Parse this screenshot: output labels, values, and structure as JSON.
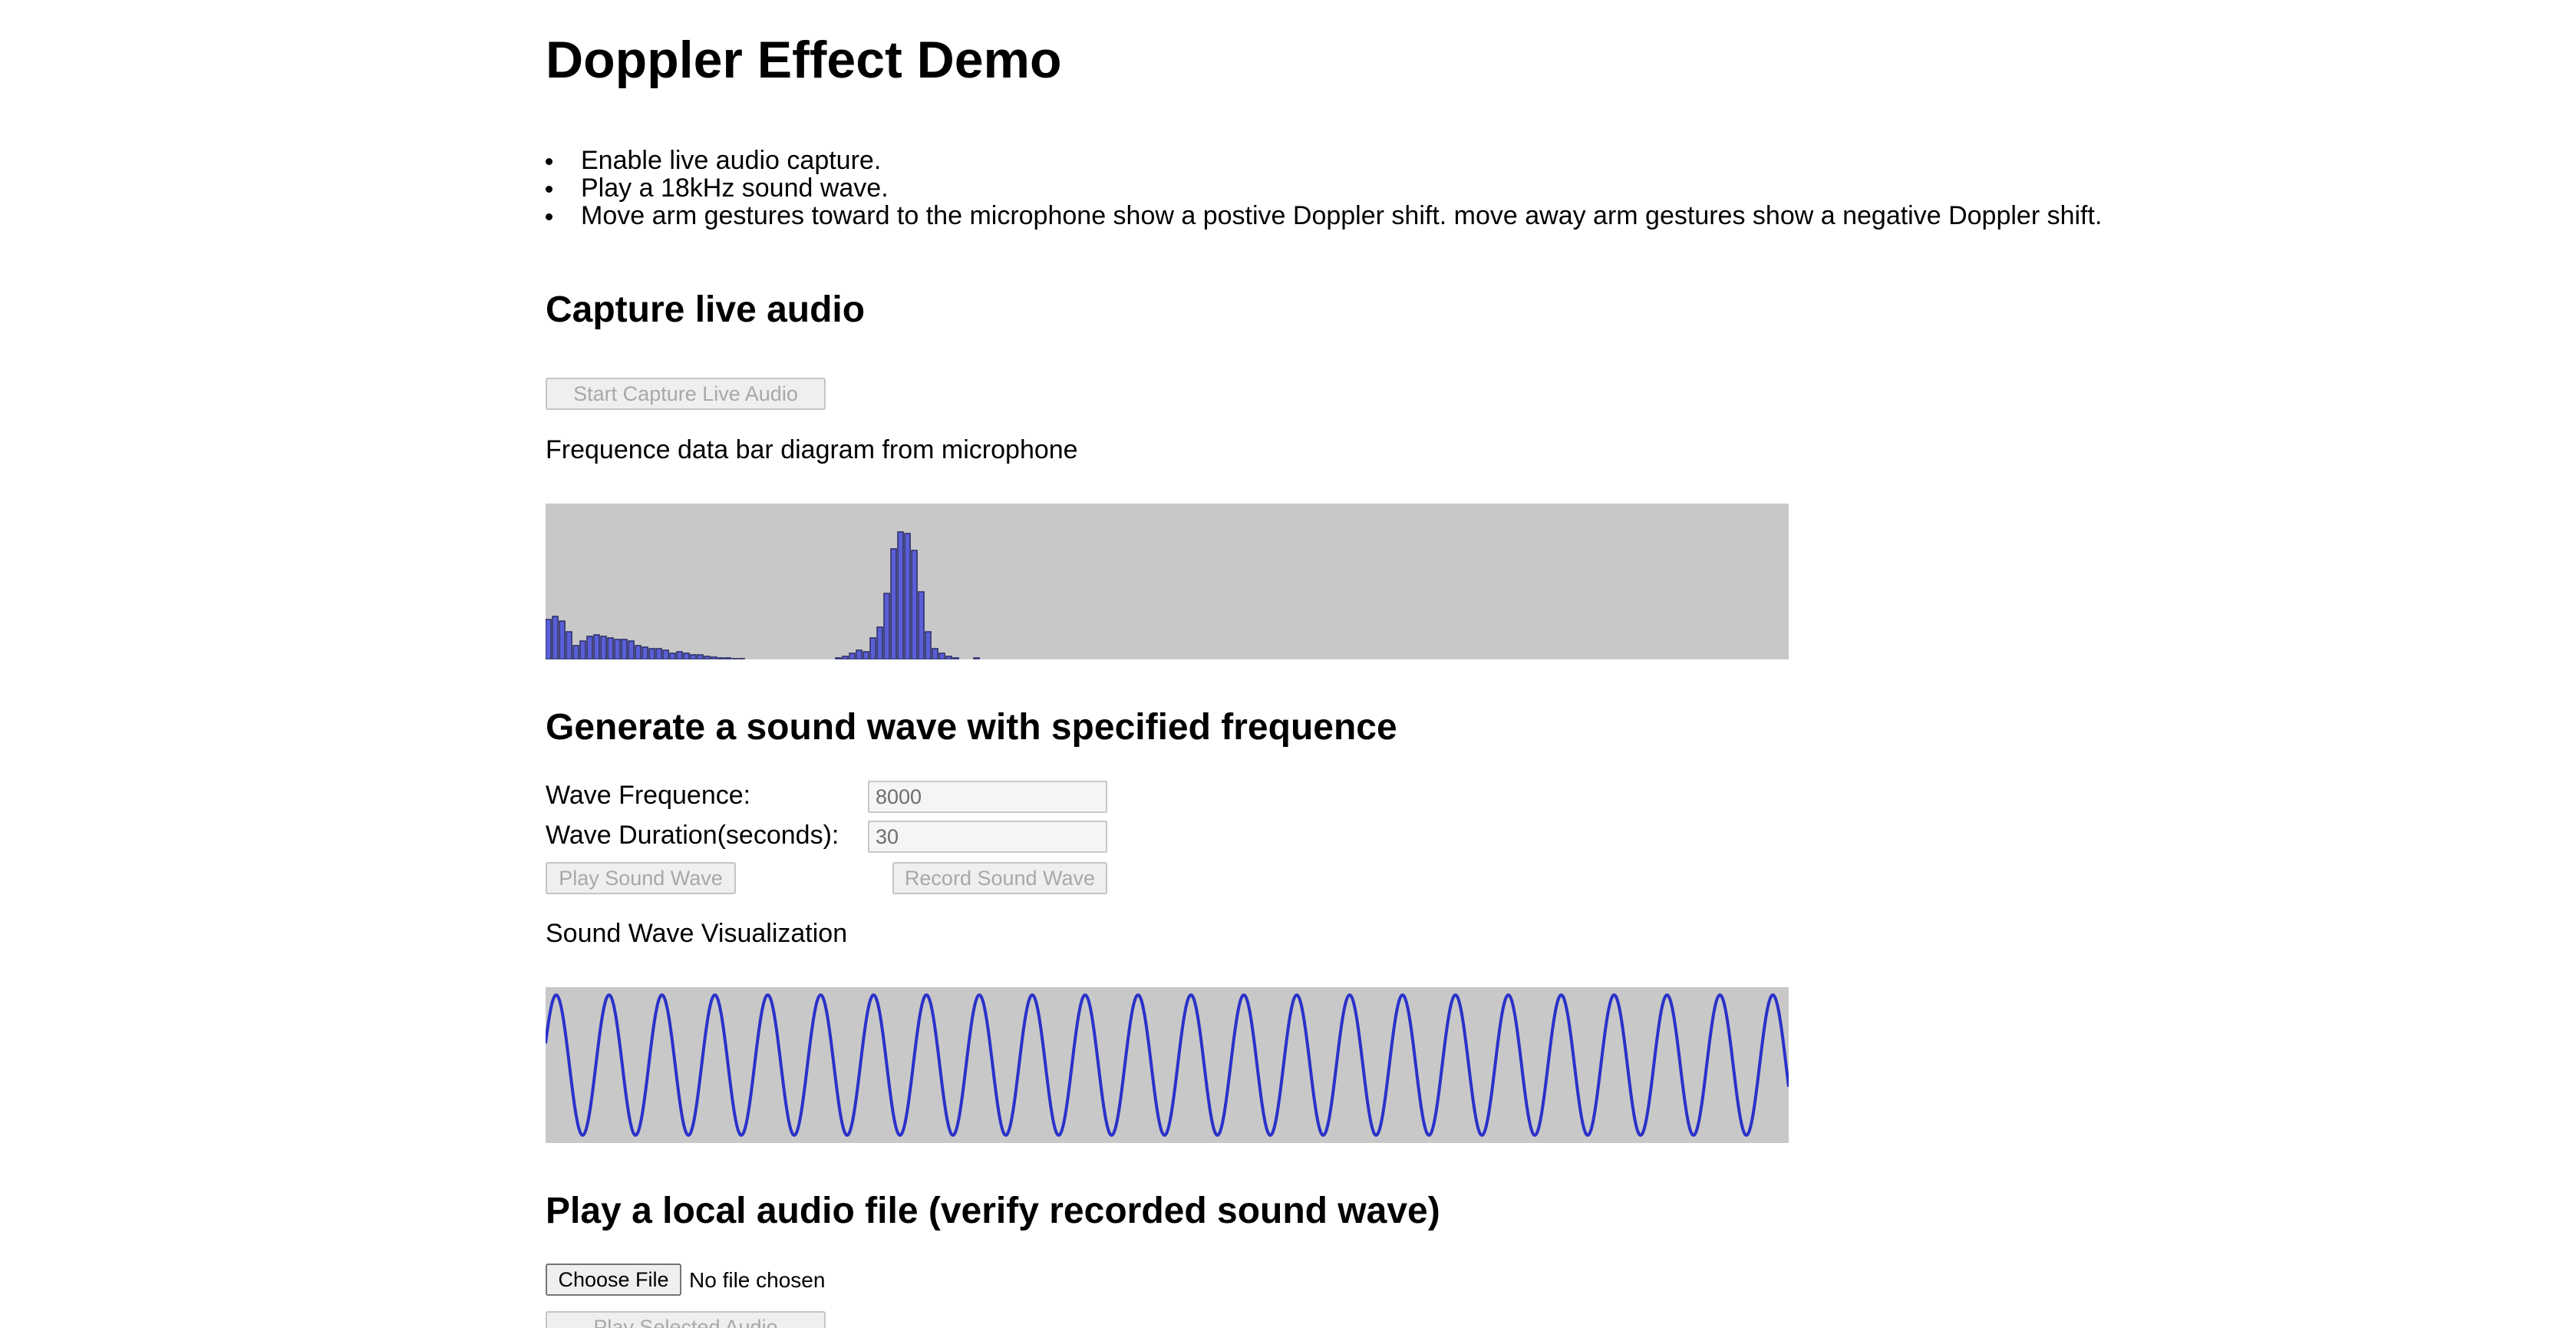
{
  "page": {
    "title": "Doppler Effect Demo",
    "steps": [
      "Enable live audio capture.",
      "Play a 18kHz sound wave.",
      "Move arm gestures toward to the microphone show a postive Doppler shift. move away arm gestures show a negative Doppler shift."
    ]
  },
  "capture": {
    "heading": "Capture live audio",
    "start_button": "Start Capture Live Audio",
    "caption": "Frequence data bar diagram from microphone"
  },
  "generate": {
    "heading": "Generate a sound wave with specified frequence",
    "frequency_label": "Wave Frequence:",
    "frequency_value": "8000",
    "duration_label": "Wave Duration(seconds):",
    "duration_value": "30",
    "play_button": "Play Sound Wave",
    "record_button": "Record Sound Wave",
    "visualization_caption": "Sound Wave Visualization"
  },
  "local_file": {
    "heading": "Play a local audio file (verify recorded sound wave)",
    "choose_button": "Choose File",
    "file_status": "No file chosen",
    "play_button": "Play Selected Audio"
  },
  "colors": {
    "canvas_background": "#c8c8c8",
    "bar_fill": "#5a5fd6",
    "bar_outline": "#2a2d66",
    "wave_stroke": "#2a31c9"
  },
  "chart_data": [
    {
      "type": "bar",
      "values": [
        52,
        56,
        50,
        36,
        18,
        24,
        30,
        32,
        30,
        28,
        26,
        26,
        24,
        18,
        16,
        14,
        14,
        12,
        8,
        10,
        8,
        6,
        6,
        4,
        3,
        2,
        2,
        1,
        1,
        0,
        0,
        0,
        0,
        0,
        0,
        0,
        0,
        0,
        0,
        0,
        0,
        0,
        2,
        4,
        8,
        12,
        10,
        28,
        42,
        86,
        144,
        166,
        164,
        142,
        88,
        36,
        14,
        8,
        4,
        2,
        0,
        0,
        2
      ],
      "ylim": [
        0,
        203
      ]
    },
    {
      "type": "line",
      "waveform": "sine",
      "cycles": 23.5,
      "amplitude": 0.9,
      "ylim": [
        -1,
        1
      ]
    }
  ]
}
